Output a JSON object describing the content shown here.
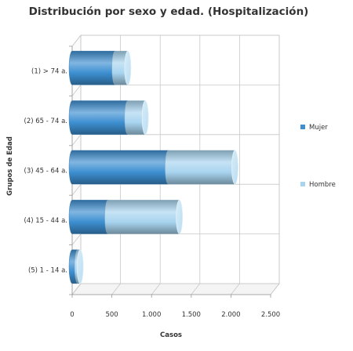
{
  "chart_data": {
    "type": "bar",
    "orientation": "horizontal",
    "stacked": true,
    "title": "Distribución por sexo y edad. (Hospitalización)",
    "xlabel": "Casos",
    "ylabel": "Grupos de Edad",
    "categories": [
      "(1) > 74 a.",
      "(2) 65 - 74 a.",
      "(3) 45 - 64 a.",
      "(4) 15 - 44 a.",
      "(5) 1 - 14 a."
    ],
    "series": [
      {
        "name": "Mujer",
        "color": "#3d8fd1",
        "values": [
          540,
          700,
          1210,
          450,
          70
        ]
      },
      {
        "name": "Hombre",
        "color": "#a8d4ef",
        "values": [
          160,
          220,
          840,
          900,
          30
        ]
      }
    ],
    "xlim": [
      0,
      2500
    ],
    "xticks": [
      0,
      500,
      1000,
      1500,
      2000,
      2500
    ],
    "xtick_labels": [
      "0",
      "500",
      "1.000",
      "1.500",
      "2.000",
      "2.500"
    ],
    "grid": true,
    "legend_position": "right",
    "style": "3d-cylinder"
  }
}
